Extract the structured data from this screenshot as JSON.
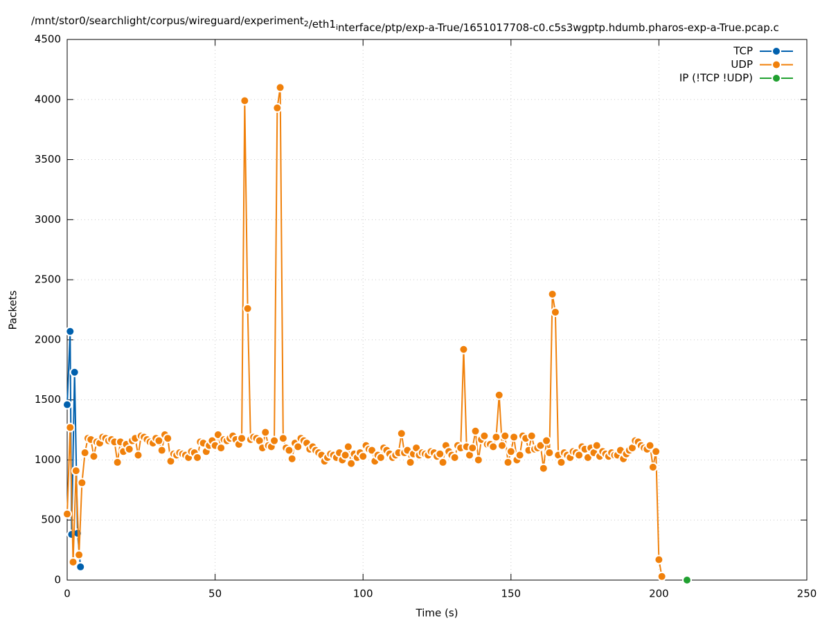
{
  "chart_data": {
    "type": "line",
    "title": "/mnt/stor0/searchlight/corpus/wireguard/experiment_2/eth1_interface/ptp/exp-a-True/1651017708-c0.c5s3wgptp.hdumb.pharos-exp-a-True.pcap.c",
    "x_label": "Time (s)",
    "y_label": "Packets",
    "xlim": [
      0,
      250
    ],
    "xticks": [
      0,
      50,
      100,
      150,
      200,
      250
    ],
    "ylim": [
      0,
      4500
    ],
    "yticks": [
      0,
      500,
      1000,
      1500,
      2000,
      2500,
      3000,
      3500,
      4000,
      4500
    ],
    "grid": true,
    "legend": "top-right",
    "series": [
      {
        "name": "TCP",
        "color": "#0060ad",
        "x": [
          0,
          1,
          1.5,
          2.5,
          3.5,
          4.5
        ],
        "values": [
          1460,
          2070,
          380,
          1730,
          390,
          110
        ]
      },
      {
        "name": "UDP",
        "color": "#f0800a",
        "x": [
          0,
          1,
          2,
          3,
          4,
          5,
          6,
          7,
          8,
          9,
          10,
          11,
          12,
          13,
          14,
          15,
          16,
          17,
          18,
          19,
          20,
          21,
          22,
          23,
          24,
          25,
          26,
          27,
          28,
          29,
          30,
          31,
          32,
          33,
          34,
          35,
          36,
          37,
          38,
          39,
          40,
          41,
          42,
          43,
          44,
          45,
          46,
          47,
          48,
          49,
          50,
          51,
          52,
          53,
          54,
          55,
          56,
          57,
          58,
          59,
          60,
          61,
          62,
          63,
          64,
          65,
          66,
          67,
          68,
          69,
          70,
          71,
          72,
          73,
          74,
          75,
          76,
          77,
          78,
          79,
          80,
          81,
          82,
          83,
          84,
          85,
          86,
          87,
          88,
          89,
          90,
          91,
          92,
          93,
          94,
          95,
          96,
          97,
          98,
          99,
          100,
          101,
          102,
          103,
          104,
          105,
          106,
          107,
          108,
          109,
          110,
          111,
          112,
          113,
          114,
          115,
          116,
          117,
          118,
          119,
          120,
          121,
          122,
          123,
          124,
          125,
          126,
          127,
          128,
          129,
          130,
          131,
          132,
          133,
          134,
          135,
          136,
          137,
          138,
          139,
          140,
          141,
          142,
          143,
          144,
          145,
          146,
          147,
          148,
          149,
          150,
          151,
          152,
          153,
          154,
          155,
          156,
          157,
          158,
          159,
          160,
          161,
          162,
          163,
          164,
          165,
          166,
          167,
          168,
          169,
          170,
          171,
          172,
          173,
          174,
          175,
          176,
          177,
          178,
          179,
          180,
          181,
          182,
          183,
          184,
          185,
          186,
          187,
          188,
          189,
          190,
          191,
          192,
          193,
          194,
          195,
          196,
          197,
          198,
          199,
          200,
          201
        ],
        "values": [
          550,
          1270,
          150,
          910,
          210,
          810,
          1060,
          1180,
          1170,
          1030,
          1150,
          1140,
          1190,
          1180,
          1160,
          1170,
          1150,
          980,
          1150,
          1070,
          1130,
          1090,
          1160,
          1180,
          1040,
          1200,
          1190,
          1170,
          1150,
          1140,
          1180,
          1160,
          1080,
          1210,
          1180,
          990,
          1050,
          1040,
          1060,
          1050,
          1040,
          1020,
          1070,
          1060,
          1020,
          1150,
          1140,
          1070,
          1120,
          1160,
          1120,
          1210,
          1100,
          1170,
          1160,
          1180,
          1200,
          1170,
          1130,
          1180,
          3990,
          2260,
          1170,
          1190,
          1180,
          1160,
          1100,
          1230,
          1120,
          1110,
          1160,
          3930,
          4100,
          1180,
          1100,
          1080,
          1010,
          1140,
          1110,
          1180,
          1160,
          1140,
          1090,
          1110,
          1080,
          1060,
          1040,
          990,
          1020,
          1050,
          1040,
          1020,
          1060,
          1000,
          1040,
          1110,
          970,
          1050,
          1020,
          1060,
          1030,
          1120,
          1090,
          1080,
          990,
          1040,
          1020,
          1100,
          1080,
          1050,
          1020,
          1040,
          1060,
          1220,
          1060,
          1080,
          980,
          1050,
          1100,
          1040,
          1060,
          1050,
          1040,
          1070,
          1060,
          1030,
          1050,
          980,
          1120,
          1070,
          1040,
          1020,
          1120,
          1100,
          1920,
          1110,
          1040,
          1100,
          1240,
          1000,
          1170,
          1200,
          1130,
          1130,
          1110,
          1190,
          1540,
          1120,
          1200,
          980,
          1070,
          1190,
          1000,
          1040,
          1200,
          1180,
          1080,
          1200,
          1090,
          1100,
          1120,
          930,
          1160,
          1060,
          2380,
          2230,
          1040,
          980,
          1060,
          1040,
          1020,
          1070,
          1060,
          1040,
          1110,
          1090,
          1020,
          1100,
          1060,
          1120,
          1030,
          1070,
          1050,
          1030,
          1060,
          1040,
          1040,
          1080,
          1010,
          1050,
          1080,
          1100,
          1160,
          1150,
          1120,
          1100,
          1090,
          1120,
          940,
          1070,
          170,
          30
        ]
      },
      {
        "name": "IP (!TCP  !UDP)",
        "color": "#20a030",
        "x": [
          209.5
        ],
        "values": [
          0
        ]
      }
    ]
  }
}
